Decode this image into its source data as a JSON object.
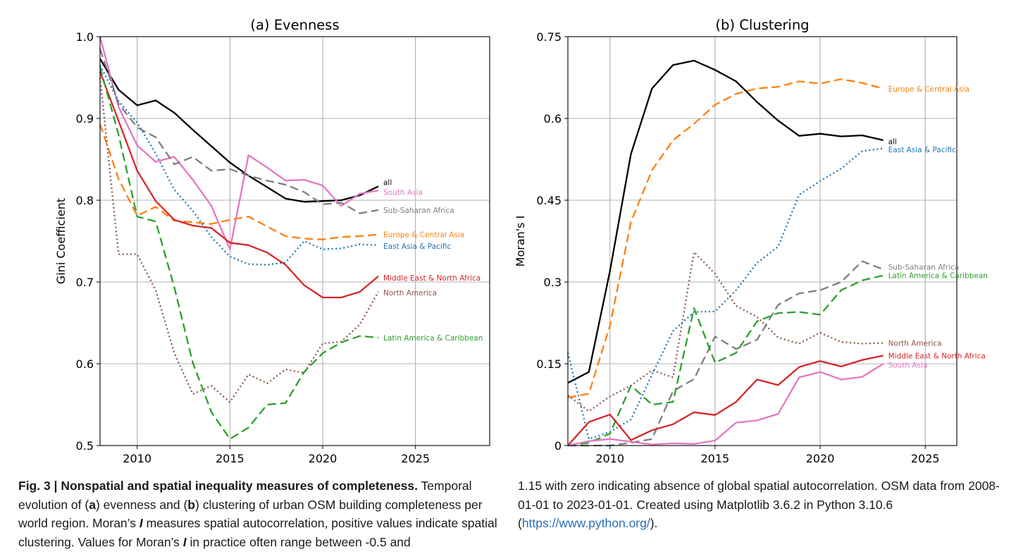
{
  "chart_data": [
    {
      "type": "line",
      "title": "(a) Evenness",
      "xlabel": "",
      "ylabel": "Gini Coefficient",
      "xlim": [
        2008,
        2029
      ],
      "ylim": [
        0.5,
        1.0
      ],
      "x_ticks": [
        2010,
        2015,
        2020,
        2025
      ],
      "y_ticks": [
        0.5,
        0.6,
        0.7,
        0.8,
        0.9,
        1.0
      ],
      "y_tick_labels": [
        "0.5",
        "0.6",
        "0.7",
        "0.8",
        "0.9",
        "1.0"
      ],
      "grid": true,
      "legend": "inline labels at line ends",
      "x": [
        2008,
        2009,
        2010,
        2011,
        2012,
        2013,
        2014,
        2015,
        2016,
        2017,
        2018,
        2019,
        2020,
        2021,
        2022,
        2023
      ],
      "series": [
        {
          "name": "all",
          "color": "#000000",
          "dash": "solid",
          "label_y": 0.822,
          "values": [
            0.973,
            0.935,
            0.916,
            0.922,
            0.907,
            0.886,
            0.866,
            0.846,
            0.83,
            0.816,
            0.802,
            0.798,
            0.799,
            0.8,
            0.806,
            0.817
          ]
        },
        {
          "name": "South Asia",
          "color": "#e377c2",
          "dash": "solid",
          "label_y": 0.81,
          "values": [
            1.0,
            0.914,
            0.867,
            0.847,
            0.853,
            0.825,
            0.793,
            0.74,
            0.855,
            0.84,
            0.824,
            0.825,
            0.818,
            0.793,
            0.808,
            0.812
          ]
        },
        {
          "name": "Sub-Saharan Africa",
          "color": "#7f7f7f",
          "dash": "dashed",
          "label_y": 0.788,
          "values": [
            0.985,
            0.918,
            0.889,
            0.877,
            0.844,
            0.853,
            0.836,
            0.838,
            0.83,
            0.824,
            0.819,
            0.81,
            0.795,
            0.797,
            0.784,
            0.788
          ]
        },
        {
          "name": "Europe & Central Asia",
          "color": "#ff7f0e",
          "dash": "dashed",
          "label_y": 0.758,
          "values": [
            0.893,
            0.826,
            0.781,
            0.792,
            0.775,
            0.773,
            0.771,
            0.776,
            0.78,
            0.768,
            0.756,
            0.753,
            0.752,
            0.755,
            0.756,
            0.758
          ]
        },
        {
          "name": "East Asia & Pacific",
          "color": "#1f77b4",
          "dash": "dotted",
          "label_y": 0.744,
          "values": [
            0.965,
            0.921,
            0.895,
            0.857,
            0.813,
            0.787,
            0.755,
            0.731,
            0.722,
            0.721,
            0.724,
            0.75,
            0.74,
            0.741,
            0.746,
            0.745
          ]
        },
        {
          "name": "Middle East & North Africa",
          "color": "#d62728",
          "dash": "solid",
          "label_y": 0.705,
          "values": [
            0.957,
            0.897,
            0.836,
            0.799,
            0.776,
            0.769,
            0.766,
            0.748,
            0.745,
            0.736,
            0.721,
            0.696,
            0.681,
            0.681,
            0.688,
            0.707
          ]
        },
        {
          "name": "North America",
          "color": "#8c564b",
          "dash": "dotted",
          "label_y": 0.687,
          "values": [
            0.95,
            0.734,
            0.734,
            0.69,
            0.613,
            0.563,
            0.573,
            0.553,
            0.587,
            0.576,
            0.593,
            0.589,
            0.625,
            0.627,
            0.648,
            0.688
          ]
        },
        {
          "name": "Latin America & Caribbean",
          "color": "#2ca02c",
          "dash": "dashed",
          "label_y": 0.632,
          "values": [
            0.963,
            0.88,
            0.78,
            0.774,
            0.694,
            0.601,
            0.541,
            0.508,
            0.522,
            0.55,
            0.552,
            0.59,
            0.613,
            0.626,
            0.634,
            0.632
          ]
        }
      ]
    },
    {
      "type": "line",
      "title": "(b) Clustering",
      "xlabel": "",
      "ylabel": "Moran's I",
      "xlim": [
        2008,
        2026.5
      ],
      "ylim": [
        0,
        0.75
      ],
      "x_ticks": [
        2010,
        2015,
        2020,
        2025
      ],
      "y_ticks": [
        0,
        0.15,
        0.3,
        0.45,
        0.6,
        0.75
      ],
      "y_tick_labels": [
        "0",
        "0.15",
        "0.3",
        "0.45",
        "0.6",
        "0.75"
      ],
      "grid": true,
      "legend": "inline labels at line ends",
      "x": [
        2008,
        2009,
        2010,
        2011,
        2012,
        2013,
        2014,
        2015,
        2016,
        2017,
        2018,
        2019,
        2020,
        2021,
        2022,
        2023
      ],
      "series": [
        {
          "name": "Europe & Central Asia",
          "color": "#ff7f0e",
          "dash": "dashed",
          "label_y": 0.654,
          "values": [
            0.088,
            0.095,
            0.22,
            0.41,
            0.505,
            0.56,
            0.59,
            0.625,
            0.645,
            0.655,
            0.658,
            0.668,
            0.664,
            0.672,
            0.665,
            0.655
          ]
        },
        {
          "name": "all",
          "color": "#000000",
          "dash": "solid",
          "label_y": 0.558,
          "values": [
            0.115,
            0.135,
            0.32,
            0.535,
            0.655,
            0.698,
            0.706,
            0.689,
            0.668,
            0.63,
            0.596,
            0.568,
            0.572,
            0.567,
            0.569,
            0.56
          ]
        },
        {
          "name": "East Asia & Pacific",
          "color": "#1f77b4",
          "dash": "dotted",
          "label_y": 0.543,
          "values": [
            0.17,
            0.012,
            0.025,
            0.048,
            0.13,
            0.21,
            0.245,
            0.246,
            0.285,
            0.335,
            0.365,
            0.46,
            0.485,
            0.508,
            0.54,
            0.545
          ]
        },
        {
          "name": "Sub-Saharan Africa",
          "color": "#7f7f7f",
          "dash": "dashed",
          "label_y": 0.328,
          "values": [
            0.0,
            0.0,
            0.0,
            0.005,
            0.012,
            0.1,
            0.122,
            0.2,
            0.177,
            0.194,
            0.258,
            0.279,
            0.285,
            0.3,
            0.338,
            0.323
          ]
        },
        {
          "name": "Latin America & Caribbean",
          "color": "#2ca02c",
          "dash": "dashed",
          "label_y": 0.312,
          "values": [
            0.0,
            0.005,
            0.022,
            0.11,
            0.075,
            0.08,
            0.252,
            0.152,
            0.17,
            0.228,
            0.243,
            0.245,
            0.24,
            0.285,
            0.303,
            0.312
          ]
        },
        {
          "name": "North America",
          "color": "#8c564b",
          "dash": "dotted",
          "label_y": 0.188,
          "values": [
            0.092,
            0.063,
            0.09,
            0.11,
            0.138,
            0.125,
            0.355,
            0.315,
            0.256,
            0.236,
            0.198,
            0.187,
            0.207,
            0.19,
            0.187,
            0.188
          ]
        },
        {
          "name": "Middle East & North Africa",
          "color": "#d62728",
          "dash": "solid",
          "label_y": 0.165,
          "values": [
            0.0,
            0.043,
            0.057,
            0.01,
            0.028,
            0.039,
            0.061,
            0.056,
            0.08,
            0.121,
            0.111,
            0.144,
            0.155,
            0.145,
            0.157,
            0.165
          ]
        },
        {
          "name": "South Asia",
          "color": "#e377c2",
          "dash": "solid",
          "label_y": 0.148,
          "values": [
            0.0,
            0.008,
            0.012,
            0.007,
            0.002,
            0.004,
            0.003,
            0.009,
            0.042,
            0.046,
            0.058,
            0.125,
            0.135,
            0.121,
            0.126,
            0.15
          ]
        }
      ]
    }
  ],
  "caption": {
    "fig_label": "Fig. 3 | Nonspatial and spatial inequality measures of completeness.",
    "part1": " Temporal evolution of (",
    "a": "a",
    "part2": ") evenness and (",
    "b": "b",
    "part3": ") clustering of urban OSM building completeness per world region. Moran’s ",
    "i1": "I",
    "part4": " measures spatial autocorrelation, positive values indicate spatial clustering. Values for Moran’s ",
    "i2": "I",
    "part5": " in practice often range between -0.5 and",
    "right_text": "1.15 with zero indicating absence of global spatial autocorrelation. OSM data from 2008-01-01 to 2023-01-01. Created using Matplotlib 3.6.2 in Python 3.10.6 (",
    "link_text": "https://www.python.org/",
    "right_end": ")."
  }
}
